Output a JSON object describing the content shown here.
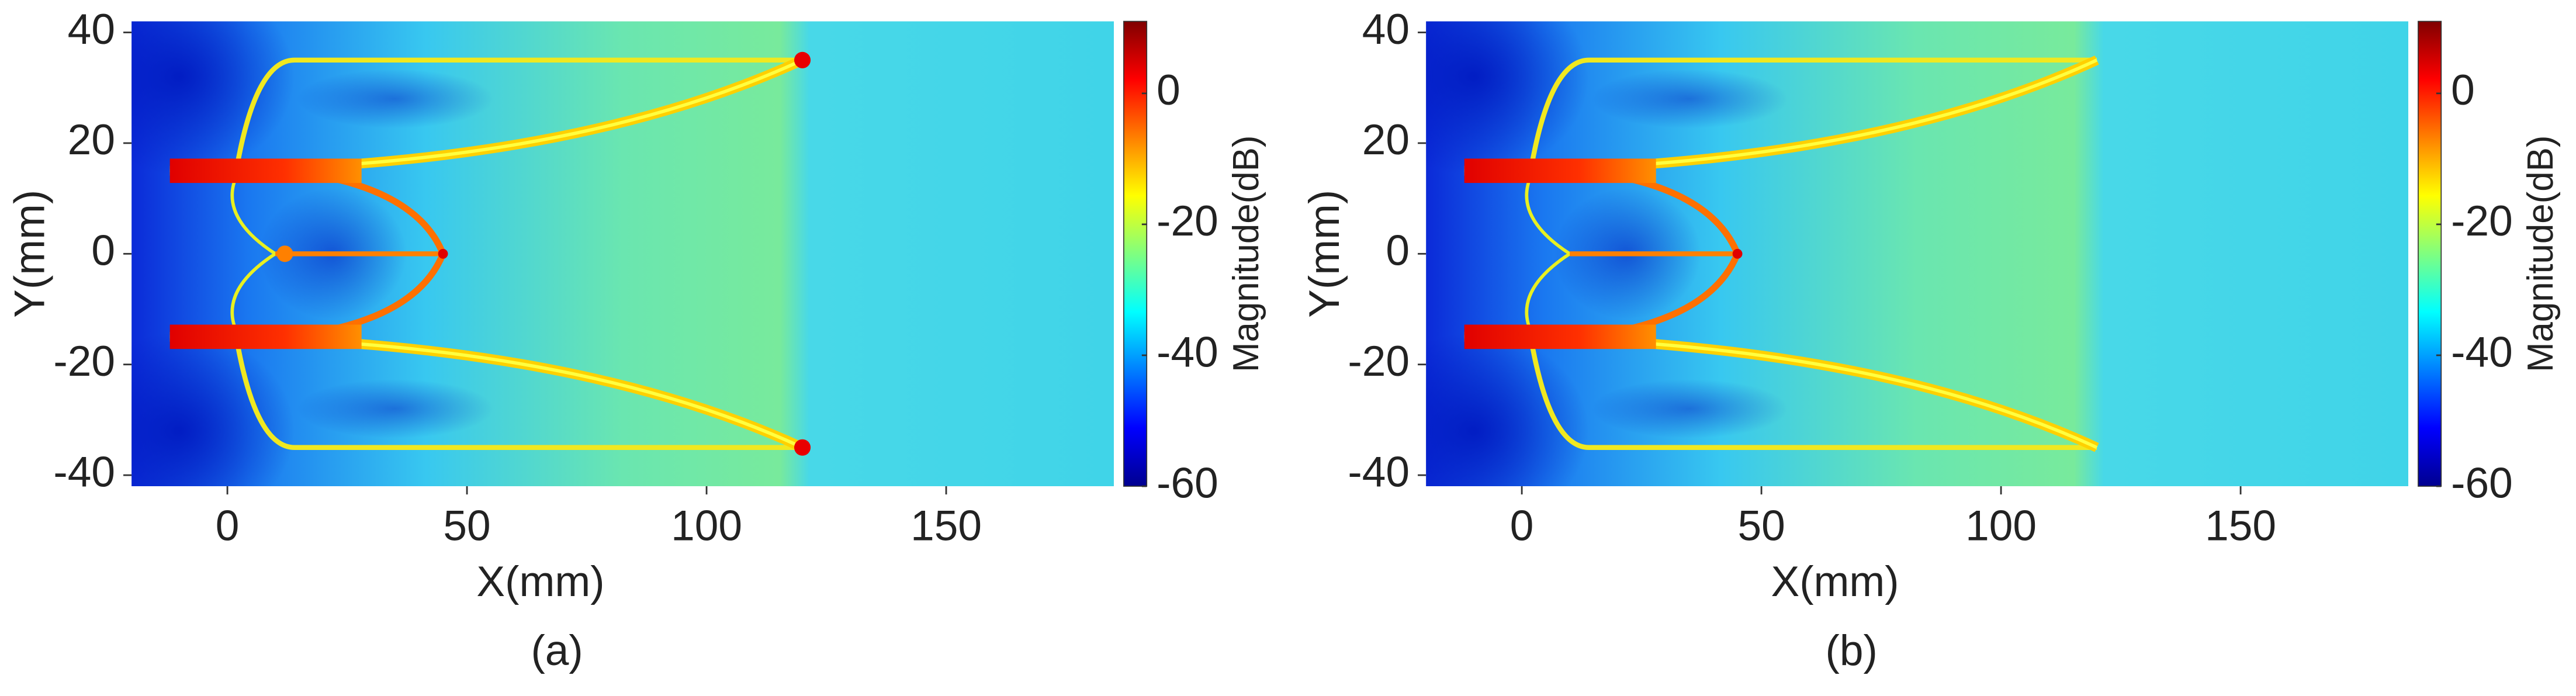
{
  "chart_data": [
    {
      "type": "heatmap",
      "caption": "(a)",
      "xlabel": "X(mm)",
      "ylabel": "Y(mm)",
      "xlim": [
        -20,
        185
      ],
      "ylim": [
        -42,
        42
      ],
      "xticks": [
        0,
        50,
        100,
        150
      ],
      "yticks": [
        -40,
        -20,
        0,
        20,
        40
      ],
      "colorbar": {
        "label": "Magnitude(dB)",
        "lim": [
          -60,
          11
        ],
        "ticks": [
          -60,
          -40,
          -20,
          0
        ],
        "colormap": "jet"
      }
    },
    {
      "type": "heatmap",
      "caption": "(b)",
      "xlabel": "X(mm)",
      "ylabel": "Y(mm)",
      "xlim": [
        -20,
        185
      ],
      "ylim": [
        -42,
        42
      ],
      "xticks": [
        0,
        50,
        100,
        150
      ],
      "yticks": [
        -40,
        -20,
        0,
        20,
        40
      ],
      "colorbar": {
        "label": "Magnitude(dB)",
        "lim": [
          -60,
          11
        ],
        "ticks": [
          -60,
          -40,
          -20,
          0
        ],
        "colormap": "jet"
      }
    }
  ]
}
